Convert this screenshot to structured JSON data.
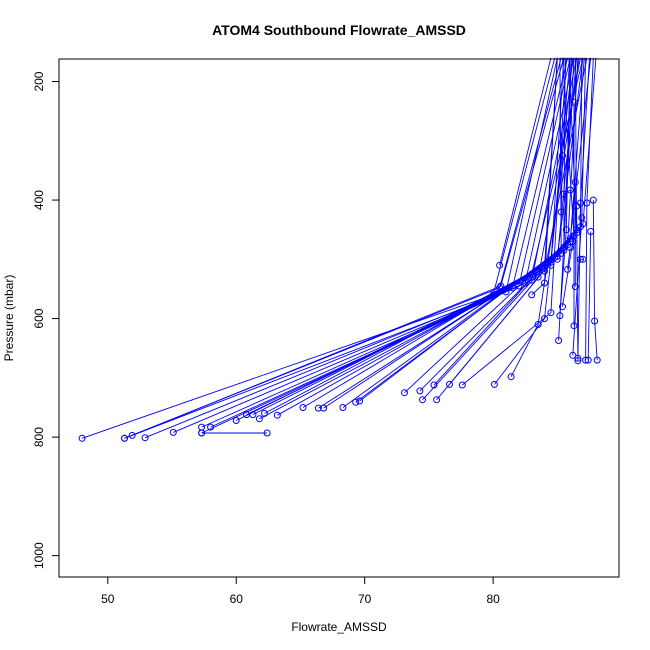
{
  "chart_data": {
    "type": "line",
    "title": "ATOM4 Southbound Flowrate_AMSSD",
    "xlabel": "Flowrate_AMSSD",
    "ylabel": "Pressure (mbar)",
    "xlim": [
      46.2,
      89.8
    ],
    "ylim": [
      1036,
      162
    ],
    "y_reversed": true,
    "x_ticks": [
      50,
      60,
      70,
      80
    ],
    "y_ticks": [
      200,
      400,
      600,
      800,
      1000
    ],
    "color": "#0000ff",
    "marker": "open-circle",
    "series": [
      {
        "points": [
          [
            48.0,
            802
          ],
          [
            80.0,
            560
          ],
          [
            84.8,
            160
          ]
        ]
      },
      {
        "points": [
          [
            51.3,
            802
          ],
          [
            81.0,
            555
          ],
          [
            85.0,
            160
          ]
        ]
      },
      {
        "points": [
          [
            51.3,
            802
          ],
          [
            80.5,
            548
          ],
          [
            85.3,
            160
          ]
        ]
      },
      {
        "points": [
          [
            51.9,
            797
          ],
          [
            80.6,
            545
          ],
          [
            85.5,
            160
          ]
        ]
      },
      {
        "points": [
          [
            52.9,
            801
          ],
          [
            81.5,
            548
          ],
          [
            85.8,
            160
          ]
        ]
      },
      {
        "points": [
          [
            55.1,
            792
          ],
          [
            82.0,
            545
          ],
          [
            86.0,
            160
          ]
        ]
      },
      {
        "points": [
          [
            57.3,
            793
          ],
          [
            82.5,
            540
          ],
          [
            86.3,
            160
          ]
        ]
      },
      {
        "points": [
          [
            57.3,
            783
          ],
          [
            83.0,
            535
          ],
          [
            86.5,
            160
          ]
        ]
      },
      {
        "points": [
          [
            58.0,
            783
          ],
          [
            83.5,
            530
          ],
          [
            86.8,
            160
          ]
        ]
      },
      {
        "points": [
          [
            60.0,
            772
          ],
          [
            83.0,
            525
          ],
          [
            87.0,
            160
          ]
        ]
      },
      {
        "points": [
          [
            60.8,
            762
          ],
          [
            84.0,
            520
          ],
          [
            87.3,
            160
          ]
        ]
      },
      {
        "points": [
          [
            61.3,
            762
          ],
          [
            84.0,
            515
          ],
          [
            85.0,
            160
          ]
        ]
      },
      {
        "points": [
          [
            61.8,
            769
          ],
          [
            84.5,
            510
          ],
          [
            85.5,
            160
          ]
        ]
      },
      {
        "points": [
          [
            62.2,
            760
          ],
          [
            84.5,
            505
          ],
          [
            86.0,
            160
          ]
        ]
      },
      {
        "points": [
          [
            62.4,
            793
          ],
          [
            57.3,
            793
          ]
        ]
      },
      {
        "points": [
          [
            63.2,
            763
          ],
          [
            85.0,
            500
          ],
          [
            86.5,
            160
          ]
        ]
      },
      {
        "points": [
          [
            65.2,
            750
          ],
          [
            85.0,
            495
          ],
          [
            87.0,
            160
          ]
        ]
      },
      {
        "points": [
          [
            66.4,
            751
          ],
          [
            85.3,
            490
          ],
          [
            85.2,
            160
          ]
        ]
      },
      {
        "points": [
          [
            66.8,
            751
          ],
          [
            85.5,
            485
          ],
          [
            85.6,
            160
          ]
        ]
      },
      {
        "points": [
          [
            68.3,
            750
          ],
          [
            85.5,
            480
          ],
          [
            86.1,
            160
          ]
        ]
      },
      {
        "points": [
          [
            69.3,
            741
          ],
          [
            85.8,
            475
          ],
          [
            86.6,
            160
          ]
        ]
      },
      {
        "points": [
          [
            69.6,
            739
          ],
          [
            86.0,
            470
          ],
          [
            87.1,
            160
          ]
        ]
      },
      {
        "points": [
          [
            73.1,
            725
          ],
          [
            86.0,
            465
          ],
          [
            87.6,
            160
          ]
        ]
      },
      {
        "points": [
          [
            74.3,
            722
          ],
          [
            86.3,
            460
          ],
          [
            85.4,
            160
          ]
        ]
      },
      {
        "points": [
          [
            74.5,
            737
          ],
          [
            86.5,
            455
          ],
          [
            85.9,
            160
          ]
        ]
      },
      {
        "points": [
          [
            75.4,
            712
          ],
          [
            86.5,
            450
          ],
          [
            86.4,
            160
          ]
        ]
      },
      {
        "points": [
          [
            75.6,
            737
          ],
          [
            86.8,
            445
          ],
          [
            86.9,
            160
          ]
        ]
      },
      {
        "points": [
          [
            76.6,
            711
          ],
          [
            87.0,
            440
          ],
          [
            88.0,
            160
          ]
        ]
      },
      {
        "points": [
          [
            77.6,
            712
          ],
          [
            84.5,
            590
          ],
          [
            85.7,
            160
          ]
        ]
      },
      {
        "points": [
          [
            80.1,
            711
          ],
          [
            84.0,
            600
          ],
          [
            86.2,
            160
          ]
        ]
      },
      {
        "points": [
          [
            81.4,
            698
          ],
          [
            83.5,
            610
          ],
          [
            86.7,
            160
          ]
        ]
      },
      {
        "points": [
          [
            80.5,
            510
          ],
          [
            84.5,
            160
          ]
        ]
      },
      {
        "points": [
          [
            85.1,
            637
          ],
          [
            86.3,
            160
          ]
        ]
      },
      {
        "points": [
          [
            86.2,
            662
          ],
          [
            86.9,
            430
          ],
          [
            87.2,
            160
          ]
        ]
      },
      {
        "points": [
          [
            86.6,
            667
          ],
          [
            86.5,
            410
          ]
        ]
      },
      {
        "points": [
          [
            86.6,
            671
          ],
          [
            86.8,
            405
          ],
          [
            87.5,
            160
          ]
        ]
      },
      {
        "points": [
          [
            87.2,
            670
          ],
          [
            87.3,
            405
          ],
          [
            87.8,
            160
          ]
        ]
      },
      {
        "points": [
          [
            87.4,
            670
          ],
          [
            87.6,
            453
          ]
        ]
      },
      {
        "points": [
          [
            88.1,
            670
          ],
          [
            87.9,
            604
          ],
          [
            87.8,
            400
          ]
        ]
      },
      {
        "points": [
          [
            86.3,
            612
          ],
          [
            86.3,
            235
          ]
        ]
      },
      {
        "points": [
          [
            86.4,
            546
          ],
          [
            86.4,
            370
          ]
        ]
      },
      {
        "points": [
          [
            85.4,
            325
          ],
          [
            85.3,
            420
          ]
        ]
      },
      {
        "points": [
          [
            86.0,
            383
          ],
          [
            85.5,
            390
          ]
        ]
      },
      {
        "points": [
          [
            85.2,
            595
          ],
          [
            85.7,
            450
          ],
          [
            86.0,
            160
          ]
        ]
      },
      {
        "points": [
          [
            85.4,
            580
          ],
          [
            86.2,
            470
          ]
        ]
      },
      {
        "points": [
          [
            86.8,
            500
          ],
          [
            87.0,
            500
          ]
        ]
      },
      {
        "points": [
          [
            85.8,
            517
          ],
          [
            86.0,
            480
          ]
        ]
      },
      {
        "points": [
          [
            83.0,
            560
          ],
          [
            84.0,
            540
          ],
          [
            85.0,
            160
          ]
        ]
      }
    ]
  }
}
